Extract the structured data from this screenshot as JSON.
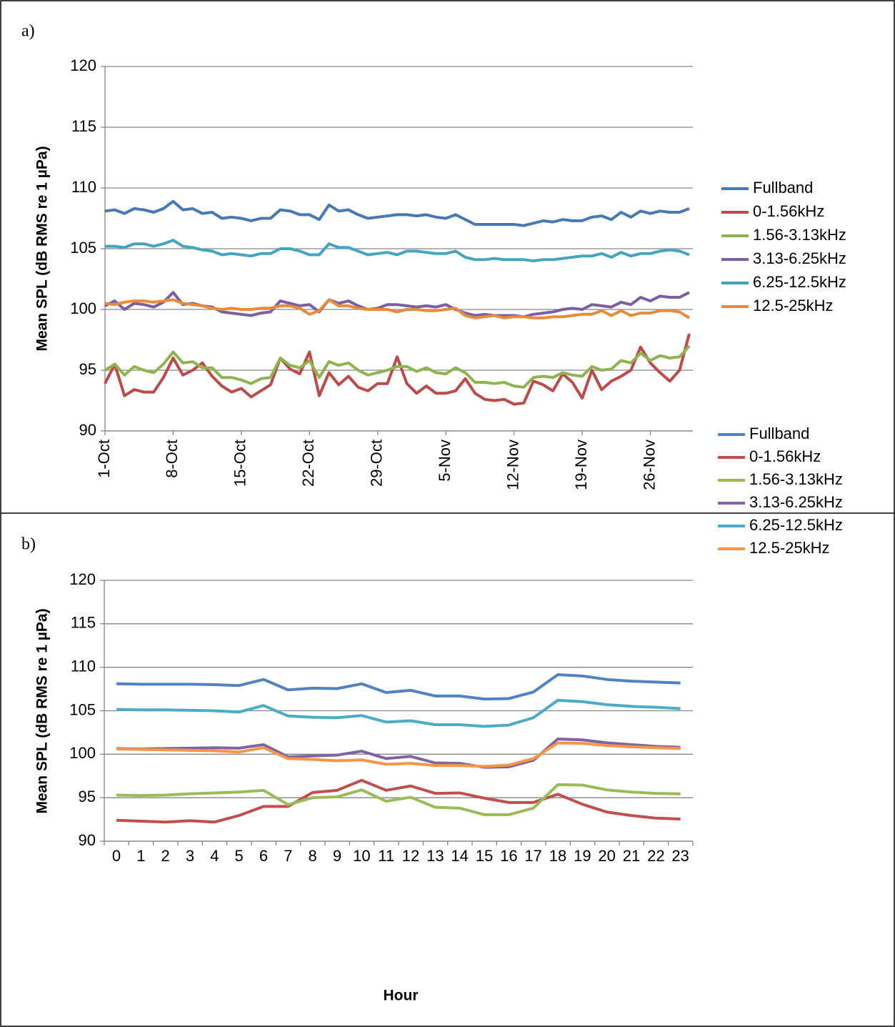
{
  "chart_data": [
    {
      "type": "line",
      "panel_label": "a)",
      "ylabel": "Mean SPL (dB RMS re 1 µPa)",
      "categories": [
        "1-Oct",
        null,
        null,
        null,
        null,
        null,
        null,
        "8-Oct",
        null,
        null,
        null,
        null,
        null,
        null,
        "15-Oct",
        null,
        null,
        null,
        null,
        null,
        null,
        "22-Oct",
        null,
        null,
        null,
        null,
        null,
        null,
        "29-Oct",
        null,
        null,
        null,
        null,
        null,
        null,
        "5-Nov",
        null,
        null,
        null,
        null,
        null,
        null,
        "12-Nov",
        null,
        null,
        null,
        null,
        null,
        null,
        "19-Nov",
        null,
        null,
        null,
        null,
        null,
        null,
        "26-Nov",
        null,
        null,
        null,
        null
      ],
      "ylim": [
        90,
        120
      ],
      "yticks": [
        90,
        95,
        100,
        105,
        110,
        115,
        120
      ],
      "grid": true,
      "legend": "right",
      "series": [
        {
          "name": "Fullband",
          "color": "#4779b3",
          "values": [
            108.1,
            108.2,
            107.9,
            108.3,
            108.2,
            108.0,
            108.3,
            108.9,
            108.2,
            108.3,
            107.9,
            108.0,
            107.5,
            107.6,
            107.5,
            107.3,
            107.5,
            107.5,
            108.2,
            108.1,
            107.8,
            107.8,
            107.4,
            108.6,
            108.1,
            108.2,
            107.8,
            107.5,
            107.6,
            107.7,
            107.8,
            107.8,
            107.7,
            107.8,
            107.6,
            107.5,
            107.8,
            107.4,
            107.0,
            107.0,
            107.0,
            107.0,
            107.0,
            106.9,
            107.1,
            107.3,
            107.2,
            107.4,
            107.3,
            107.3,
            107.6,
            107.7,
            107.4,
            108.0,
            107.6,
            108.1,
            107.9,
            108.1,
            108.0,
            108.0,
            108.3
          ]
        },
        {
          "name": "0-1.56kHz",
          "color": "#be4b48",
          "values": [
            93.9,
            95.5,
            92.9,
            93.4,
            93.2,
            93.2,
            94.4,
            96.0,
            94.6,
            95.0,
            95.6,
            94.5,
            93.7,
            93.2,
            93.5,
            92.8,
            93.3,
            93.8,
            96.0,
            95.1,
            94.7,
            96.5,
            92.9,
            94.8,
            93.8,
            94.5,
            93.6,
            93.3,
            93.9,
            93.9,
            96.1,
            93.9,
            93.1,
            93.7,
            93.1,
            93.1,
            93.3,
            94.3,
            93.1,
            92.6,
            92.5,
            92.6,
            92.2,
            92.3,
            94.1,
            93.8,
            93.3,
            94.7,
            94.0,
            92.7,
            95.0,
            93.4,
            94.1,
            94.5,
            95.0,
            96.9,
            95.6,
            94.8,
            94.1,
            95.0,
            98.0
          ]
        },
        {
          "name": "1.56-3.13kHz",
          "color": "#8fb44f",
          "values": [
            95.0,
            95.5,
            94.6,
            95.3,
            95.0,
            94.8,
            95.5,
            96.5,
            95.6,
            95.7,
            95.2,
            95.2,
            94.4,
            94.4,
            94.2,
            93.9,
            94.3,
            94.4,
            96.0,
            95.4,
            95.2,
            95.8,
            94.4,
            95.7,
            95.4,
            95.6,
            95.0,
            94.6,
            94.8,
            95.0,
            95.3,
            95.3,
            94.9,
            95.2,
            94.8,
            94.7,
            95.2,
            94.8,
            94.0,
            94.0,
            93.9,
            94.0,
            93.7,
            93.6,
            94.4,
            94.5,
            94.4,
            94.8,
            94.6,
            94.5,
            95.3,
            95.0,
            95.1,
            95.8,
            95.6,
            96.4,
            95.8,
            96.2,
            96.0,
            96.1,
            97.0
          ]
        },
        {
          "name": "3.13-6.25kHz",
          "color": "#7b5ea3",
          "values": [
            100.3,
            100.7,
            100.0,
            100.5,
            100.4,
            100.2,
            100.6,
            101.4,
            100.4,
            100.5,
            100.3,
            100.2,
            99.8,
            99.7,
            99.6,
            99.5,
            99.7,
            99.8,
            100.7,
            100.5,
            100.3,
            100.4,
            99.8,
            100.8,
            100.5,
            100.7,
            100.3,
            100.0,
            100.1,
            100.4,
            100.4,
            100.3,
            100.2,
            100.3,
            100.2,
            100.4,
            100.0,
            99.7,
            99.5,
            99.6,
            99.5,
            99.5,
            99.5,
            99.4,
            99.6,
            99.7,
            99.8,
            100.0,
            100.1,
            100.0,
            100.4,
            100.3,
            100.2,
            100.6,
            100.4,
            101.0,
            100.7,
            101.1,
            101.0,
            101.0,
            101.4
          ]
        },
        {
          "name": "6.25-12.5kHz",
          "color": "#45a5bf",
          "values": [
            105.2,
            105.2,
            105.1,
            105.4,
            105.4,
            105.2,
            105.4,
            105.7,
            105.2,
            105.1,
            104.9,
            104.8,
            104.5,
            104.6,
            104.5,
            104.4,
            104.6,
            104.6,
            105.0,
            105.0,
            104.8,
            104.5,
            104.5,
            105.4,
            105.1,
            105.1,
            104.8,
            104.5,
            104.6,
            104.7,
            104.5,
            104.8,
            104.8,
            104.7,
            104.6,
            104.6,
            104.8,
            104.3,
            104.1,
            104.1,
            104.2,
            104.1,
            104.1,
            104.1,
            104.0,
            104.1,
            104.1,
            104.2,
            104.3,
            104.4,
            104.4,
            104.6,
            104.3,
            104.7,
            104.4,
            104.6,
            104.6,
            104.8,
            104.9,
            104.8,
            104.5
          ]
        },
        {
          "name": "12.5-25kHz",
          "color": "#e98b3b",
          "values": [
            100.5,
            100.4,
            100.6,
            100.7,
            100.7,
            100.6,
            100.7,
            100.8,
            100.5,
            100.4,
            100.3,
            100.1,
            100.0,
            100.1,
            100.0,
            100.0,
            100.1,
            100.1,
            100.3,
            100.3,
            100.1,
            99.6,
            99.9,
            100.8,
            100.3,
            100.3,
            100.1,
            100.0,
            100.0,
            100.0,
            99.8,
            100.0,
            100.0,
            99.9,
            99.9,
            100.0,
            100.1,
            99.5,
            99.3,
            99.4,
            99.5,
            99.3,
            99.4,
            99.4,
            99.3,
            99.3,
            99.4,
            99.4,
            99.5,
            99.6,
            99.6,
            99.9,
            99.5,
            99.9,
            99.5,
            99.7,
            99.7,
            99.9,
            99.9,
            99.8,
            99.3
          ]
        }
      ]
    },
    {
      "type": "line",
      "panel_label": "b)",
      "ylabel": "Mean SPL (dB RMS re 1 µPa)",
      "xlabel": "Hour",
      "categories": [
        "0",
        "1",
        "2",
        "3",
        "4",
        "5",
        "6",
        "7",
        "8",
        "9",
        "10",
        "11",
        "12",
        "13",
        "14",
        "15",
        "16",
        "17",
        "18",
        "19",
        "20",
        "21",
        "22",
        "23"
      ],
      "ylim": [
        90,
        120
      ],
      "yticks": [
        90,
        95,
        100,
        105,
        110,
        115,
        120
      ],
      "grid": true,
      "legend": "right",
      "series": [
        {
          "name": "Fullband",
          "color": "#5183c0",
          "values": [
            108.1,
            108.05,
            108.05,
            108.05,
            108.0,
            107.9,
            108.6,
            107.4,
            107.6,
            107.55,
            108.1,
            107.1,
            107.35,
            106.7,
            106.7,
            106.35,
            106.4,
            107.15,
            109.15,
            109.0,
            108.6,
            108.4,
            108.3,
            108.2
          ]
        },
        {
          "name": "0-1.56kHz",
          "color": "#c0504d",
          "values": [
            92.4,
            92.3,
            92.2,
            92.35,
            92.2,
            92.95,
            94.0,
            94.0,
            95.6,
            95.85,
            97.0,
            95.85,
            96.35,
            95.5,
            95.55,
            94.95,
            94.45,
            94.45,
            95.4,
            94.25,
            93.35,
            92.95,
            92.65,
            92.55
          ]
        },
        {
          "name": "1.56-3.13kHz",
          "color": "#9bbb59",
          "values": [
            95.3,
            95.25,
            95.3,
            95.45,
            95.55,
            95.65,
            95.85,
            94.2,
            95.0,
            95.1,
            95.9,
            94.6,
            95.05,
            93.9,
            93.8,
            93.05,
            93.05,
            93.8,
            96.5,
            96.45,
            95.9,
            95.65,
            95.5,
            95.45
          ]
        },
        {
          "name": "3.13-6.25kHz",
          "color": "#8064a2",
          "values": [
            100.65,
            100.6,
            100.65,
            100.7,
            100.75,
            100.7,
            101.1,
            99.7,
            99.8,
            99.9,
            100.35,
            99.5,
            99.75,
            99.0,
            98.95,
            98.5,
            98.55,
            99.3,
            101.75,
            101.65,
            101.3,
            101.1,
            100.9,
            100.8
          ]
        },
        {
          "name": "6.25-12.5kHz",
          "color": "#4bacc6",
          "values": [
            105.15,
            105.1,
            105.1,
            105.05,
            105.0,
            104.85,
            105.6,
            104.4,
            104.25,
            104.2,
            104.45,
            103.7,
            103.85,
            103.4,
            103.4,
            103.2,
            103.35,
            104.2,
            106.2,
            106.05,
            105.7,
            105.5,
            105.4,
            105.25
          ]
        },
        {
          "name": "12.5-25kHz",
          "color": "#f79646",
          "values": [
            100.6,
            100.55,
            100.5,
            100.45,
            100.4,
            100.25,
            100.75,
            99.5,
            99.4,
            99.25,
            99.35,
            98.85,
            98.95,
            98.7,
            98.7,
            98.6,
            98.75,
            99.5,
            101.3,
            101.25,
            101.0,
            100.85,
            100.75,
            100.65
          ]
        }
      ]
    }
  ]
}
